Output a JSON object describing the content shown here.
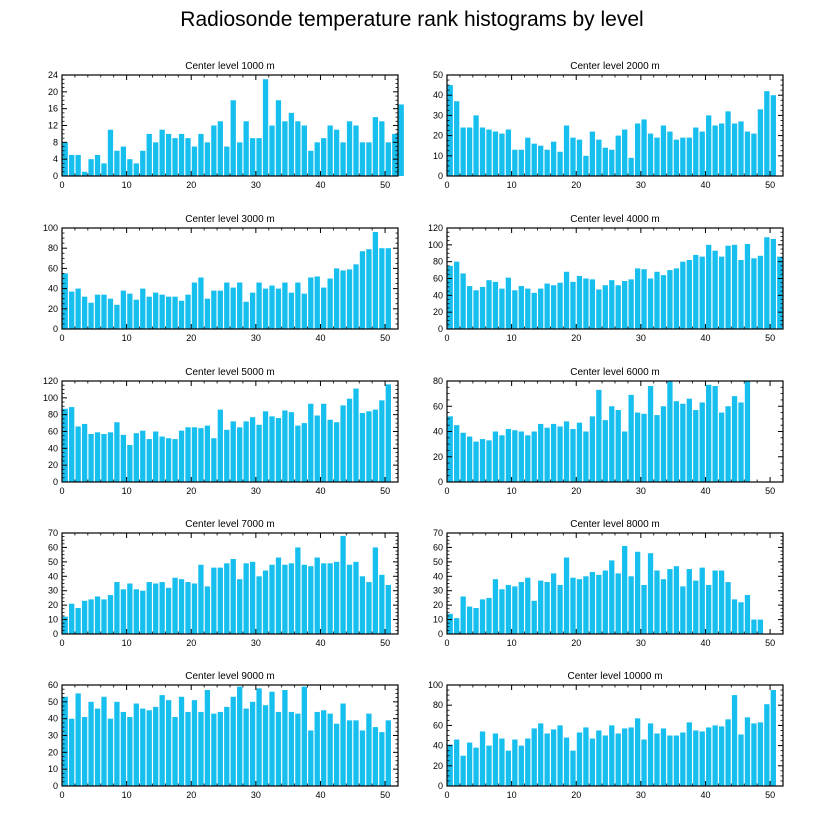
{
  "title": "Radiosonde temperature rank histograms by level",
  "bar_color": "#17bfee",
  "chart_data": [
    {
      "type": "bar",
      "title": "Center level 1000 m",
      "xlim": [
        0,
        52
      ],
      "ylim": [
        0,
        24
      ],
      "xticks": [
        0,
        10,
        20,
        30,
        40,
        50
      ],
      "yticks": [
        0,
        4,
        8,
        12,
        16,
        20,
        24
      ],
      "values": [
        8,
        5,
        5,
        1,
        4,
        5,
        3,
        11,
        6,
        7,
        4,
        3,
        6,
        10,
        8,
        11,
        10,
        9,
        10,
        9,
        7,
        10,
        8,
        12,
        13,
        7,
        18,
        8,
        13,
        9,
        9,
        23,
        12,
        18,
        13,
        15,
        13,
        12,
        6,
        8,
        9,
        12,
        11,
        8,
        13,
        12,
        8,
        8,
        14,
        13,
        8,
        10,
        17
      ]
    },
    {
      "type": "bar",
      "title": "Center level 2000 m",
      "xlim": [
        0,
        52
      ],
      "ylim": [
        0,
        50
      ],
      "xticks": [
        0,
        10,
        20,
        30,
        40,
        50
      ],
      "yticks": [
        0,
        10,
        20,
        30,
        40,
        50
      ],
      "values": [
        45,
        37,
        24,
        24,
        30,
        24,
        23,
        22,
        21,
        23,
        13,
        13,
        19,
        16,
        15,
        13,
        17,
        12,
        25,
        19,
        18,
        10,
        22,
        18,
        14,
        13,
        20,
        23,
        9,
        26,
        28,
        21,
        19,
        25,
        22,
        18,
        19,
        19,
        24,
        22,
        30,
        25,
        26,
        32,
        26,
        27,
        22,
        21,
        33,
        42,
        40
      ]
    },
    {
      "type": "bar",
      "title": "Center level 3000 m",
      "xlim": [
        0,
        52
      ],
      "ylim": [
        0,
        100
      ],
      "xticks": [
        0,
        10,
        20,
        30,
        40,
        50
      ],
      "yticks": [
        0,
        20,
        40,
        60,
        80,
        100
      ],
      "values": [
        55,
        37,
        40,
        32,
        26,
        34,
        34,
        30,
        24,
        38,
        35,
        29,
        40,
        32,
        36,
        34,
        32,
        32,
        28,
        34,
        46,
        51,
        30,
        38,
        38,
        46,
        41,
        46,
        27,
        36,
        46,
        40,
        43,
        40,
        46,
        36,
        46,
        35,
        51,
        52,
        41,
        50,
        60,
        58,
        59,
        64,
        77,
        79,
        96,
        80,
        80
      ]
    },
    {
      "type": "bar",
      "title": "Center level 4000 m",
      "xlim": [
        0,
        52
      ],
      "ylim": [
        0,
        120
      ],
      "xticks": [
        0,
        10,
        20,
        30,
        40,
        50
      ],
      "yticks": [
        0,
        20,
        40,
        60,
        80,
        100,
        120
      ],
      "values": [
        75,
        80,
        66,
        51,
        46,
        50,
        58,
        56,
        48,
        61,
        46,
        51,
        48,
        43,
        48,
        54,
        52,
        55,
        68,
        56,
        63,
        60,
        59,
        47,
        52,
        58,
        52,
        57,
        59,
        72,
        71,
        60,
        68,
        64,
        70,
        72,
        80,
        82,
        88,
        86,
        100,
        93,
        86,
        99,
        100,
        82,
        101,
        84,
        87,
        109,
        107,
        86
      ]
    },
    {
      "type": "bar",
      "title": "Center level 5000 m",
      "xlim": [
        0,
        52
      ],
      "ylim": [
        0,
        120
      ],
      "xticks": [
        0,
        10,
        20,
        30,
        40,
        50
      ],
      "yticks": [
        0,
        20,
        40,
        60,
        80,
        100,
        120
      ],
      "values": [
        87,
        89,
        66,
        69,
        57,
        59,
        57,
        59,
        71,
        56,
        44,
        58,
        61,
        51,
        60,
        54,
        52,
        51,
        61,
        65,
        65,
        64,
        67,
        52,
        86,
        62,
        72,
        65,
        72,
        77,
        68,
        84,
        78,
        76,
        85,
        83,
        67,
        70,
        93,
        79,
        93,
        74,
        71,
        91,
        99,
        111,
        82,
        84,
        86,
        97,
        116
      ]
    },
    {
      "type": "bar",
      "title": "Center level 6000 m",
      "xlim": [
        0,
        52
      ],
      "ylim": [
        0,
        80
      ],
      "xticks": [
        0,
        10,
        20,
        30,
        40,
        50
      ],
      "yticks": [
        0,
        20,
        40,
        60,
        80
      ],
      "values": [
        52,
        45,
        39,
        36,
        32,
        34,
        33,
        40,
        37,
        42,
        41,
        40,
        37,
        40,
        46,
        43,
        46,
        44,
        48,
        42,
        47,
        40,
        52,
        73,
        49,
        60,
        57,
        40,
        69,
        55,
        54,
        76,
        53,
        60,
        80,
        64,
        62,
        66,
        57,
        63,
        77,
        76,
        55,
        60,
        68,
        63,
        80
      ]
    },
    {
      "type": "bar",
      "title": "Center level 7000 m",
      "xlim": [
        0,
        52
      ],
      "ylim": [
        0,
        70
      ],
      "xticks": [
        0,
        10,
        20,
        30,
        40,
        50
      ],
      "yticks": [
        0,
        10,
        20,
        30,
        40,
        50,
        60,
        70
      ],
      "values": [
        12,
        21,
        18,
        23,
        24,
        26,
        24,
        27,
        36,
        31,
        35,
        31,
        30,
        36,
        35,
        36,
        32,
        39,
        38,
        36,
        35,
        48,
        33,
        46,
        46,
        49,
        52,
        38,
        49,
        50,
        40,
        44,
        48,
        53,
        48,
        49,
        60,
        48,
        47,
        53,
        49,
        49,
        50,
        68,
        48,
        50,
        40,
        36,
        60,
        41,
        34
      ]
    },
    {
      "type": "bar",
      "title": "Center level 8000 m",
      "xlim": [
        0,
        52
      ],
      "ylim": [
        0,
        70
      ],
      "xticks": [
        0,
        10,
        20,
        30,
        40,
        50
      ],
      "yticks": [
        0,
        10,
        20,
        30,
        40,
        50,
        60,
        70
      ],
      "values": [
        14,
        11,
        26,
        19,
        18,
        24,
        25,
        38,
        31,
        34,
        33,
        36,
        39,
        23,
        37,
        36,
        42,
        34,
        53,
        39,
        38,
        40,
        43,
        41,
        44,
        51,
        42,
        61,
        40,
        57,
        34,
        56,
        44,
        38,
        45,
        47,
        33,
        45,
        37,
        46,
        34,
        44,
        44,
        36,
        24,
        22,
        27,
        10,
        10
      ]
    },
    {
      "type": "bar",
      "title": "Center level 9000 m",
      "xlim": [
        0,
        52
      ],
      "ylim": [
        0,
        60
      ],
      "xticks": [
        0,
        10,
        20,
        30,
        40,
        50
      ],
      "yticks": [
        0,
        10,
        20,
        30,
        40,
        50,
        60
      ],
      "values": [
        53,
        40,
        55,
        41,
        50,
        46,
        53,
        40,
        50,
        44,
        41,
        49,
        46,
        45,
        47,
        54,
        51,
        41,
        53,
        44,
        51,
        44,
        57,
        43,
        44,
        47,
        53,
        59,
        46,
        50,
        58,
        48,
        56,
        44,
        57,
        44,
        43,
        59,
        33,
        44,
        45,
        43,
        37,
        49,
        39,
        39,
        33,
        43,
        35,
        32,
        39
      ]
    },
    {
      "type": "bar",
      "title": "Center level 10000 m",
      "xlim": [
        0,
        52
      ],
      "ylim": [
        0,
        100
      ],
      "xticks": [
        0,
        10,
        20,
        30,
        40,
        50
      ],
      "yticks": [
        0,
        20,
        40,
        60,
        80,
        100
      ],
      "values": [
        41,
        46,
        30,
        43,
        38,
        54,
        40,
        52,
        47,
        35,
        46,
        40,
        47,
        57,
        62,
        52,
        56,
        60,
        48,
        35,
        53,
        58,
        47,
        55,
        50,
        60,
        52,
        57,
        58,
        67,
        46,
        62,
        52,
        57,
        50,
        50,
        53,
        63,
        55,
        54,
        58,
        60,
        59,
        66,
        90,
        51,
        68,
        62,
        63,
        81,
        95
      ]
    }
  ]
}
